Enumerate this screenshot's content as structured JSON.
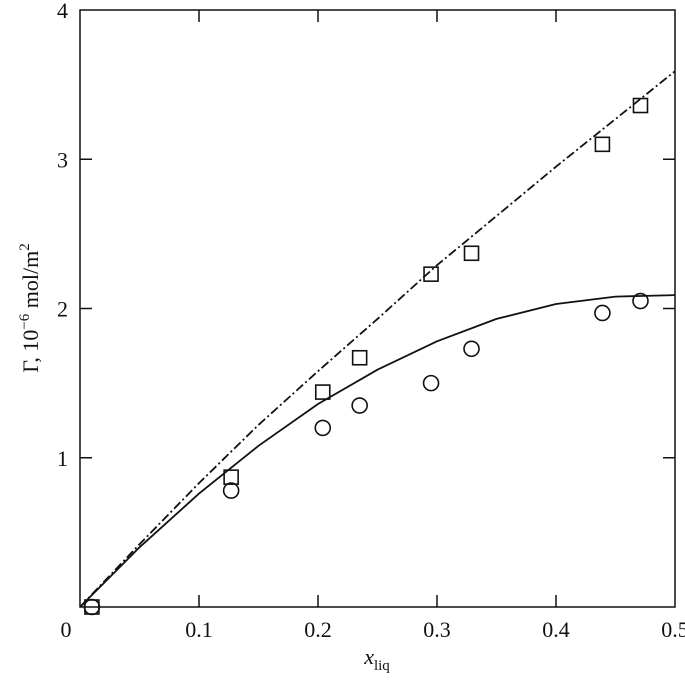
{
  "chart_data": {
    "type": "scatter",
    "xlabel": "x",
    "xlabel_sub": "liq",
    "ylabel": "Γ, 10",
    "ylabel_exp": "−6",
    "ylabel_unit": " mol/m",
    "ylabel_unit_exp": "2",
    "xlim": [
      0,
      0.5
    ],
    "ylim": [
      0,
      4
    ],
    "grid": false,
    "xticks": [
      {
        "value": 0,
        "label": "0"
      },
      {
        "value": 0.1,
        "label": "0.1"
      },
      {
        "value": 0.2,
        "label": "0.2"
      },
      {
        "value": 0.3,
        "label": "0.3"
      },
      {
        "value": 0.4,
        "label": "0.4"
      },
      {
        "value": 0.5,
        "label": "0.5"
      }
    ],
    "yticks": [
      {
        "value": 1,
        "label": "1"
      },
      {
        "value": 2,
        "label": "2"
      },
      {
        "value": 3,
        "label": "3"
      },
      {
        "value": 4,
        "label": "4"
      }
    ],
    "series": [
      {
        "marker": "square",
        "x": [
          0.01,
          0.127,
          0.204,
          0.235,
          0.295,
          0.329,
          0.439,
          0.471
        ],
        "y": [
          0.0,
          0.87,
          1.44,
          1.67,
          2.23,
          2.37,
          3.1,
          3.36
        ]
      },
      {
        "marker": "circle",
        "x": [
          0.01,
          0.127,
          0.204,
          0.235,
          0.295,
          0.329,
          0.439,
          0.471
        ],
        "y": [
          0.0,
          0.78,
          1.2,
          1.35,
          1.5,
          1.73,
          1.97,
          2.05
        ]
      },
      {
        "line": "dashed",
        "x": [
          0.0,
          0.05,
          0.1,
          0.15,
          0.2,
          0.25,
          0.3,
          0.35,
          0.4,
          0.45,
          0.5
        ],
        "y": [
          0.0,
          0.42,
          0.83,
          1.22,
          1.58,
          1.93,
          2.29,
          2.62,
          2.95,
          3.27,
          3.59
        ]
      },
      {
        "line": "solid",
        "x": [
          0.0,
          0.05,
          0.1,
          0.15,
          0.2,
          0.25,
          0.3,
          0.35,
          0.4,
          0.45,
          0.5
        ],
        "y": [
          0.0,
          0.4,
          0.76,
          1.08,
          1.36,
          1.59,
          1.78,
          1.93,
          2.03,
          2.08,
          2.09
        ]
      }
    ]
  }
}
